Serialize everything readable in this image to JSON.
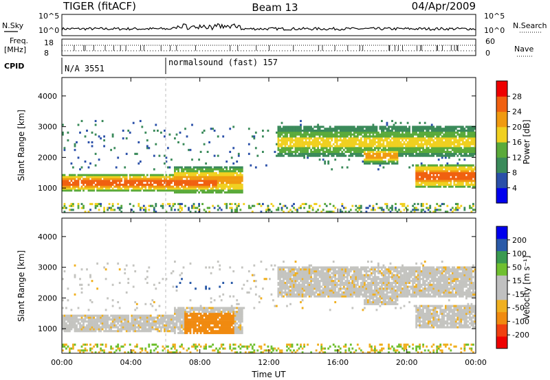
{
  "header": {
    "radar": "TIGER (fitACF)",
    "beam": "Beam 13",
    "date": "04/Apr/2009"
  },
  "top_panels": {
    "nsky_label": "N.Sky",
    "nsky_ticks": [
      "10^5",
      "10^0"
    ],
    "nsearch_label": "N.Search",
    "freq_label_1": "Freq.",
    "freq_label_2": "[MHz]",
    "freq_ticks": [
      "18",
      "8"
    ],
    "nave_label": "Nave",
    "nave_ticks": [
      "60",
      "0"
    ],
    "cpid_label": "CPID",
    "cpid_1": "N/A 3551",
    "cpid_2": "normalsound (fast) 157"
  },
  "colors": {
    "power_scale": [
      "#0000ee",
      "#2a4fa8",
      "#3a8a5a",
      "#5aaa3a",
      "#f0d020",
      "#f09a10",
      "#f06010",
      "#ee0000"
    ],
    "velocity_scale": [
      "#ee0000",
      "#f04010",
      "#f08a10",
      "#f0b020",
      "#c0c0c0",
      "#c0c0c0",
      "#70c030",
      "#3a9a50",
      "#2a5aa8",
      "#0000ee"
    ]
  },
  "chart_data": [
    {
      "type": "heatmap",
      "name_text": "power",
      "ylabel": "Slant Range [km]",
      "y_ticks": [
        "1000",
        "2000",
        "3000",
        "4000"
      ],
      "ylim": [
        200,
        4600
      ],
      "colorbar_label": "Power [dB]",
      "colorbar_ticks": [
        "4",
        "8",
        "12",
        "16",
        "20",
        "24",
        "28"
      ],
      "bands_hours": [
        {
          "t0": 0.0,
          "t1": 9.0,
          "r_low": 900,
          "r_high": 1450,
          "level": 28
        },
        {
          "t0": 6.5,
          "t1": 10.5,
          "r_low": 800,
          "r_high": 1700,
          "level": 24
        },
        {
          "t0": 12.5,
          "t1": 24.0,
          "r_low": 2000,
          "r_high": 3000,
          "level": 20
        },
        {
          "t0": 17.5,
          "t1": 19.5,
          "r_low": 1800,
          "r_high": 2300,
          "level": 24
        },
        {
          "t0": 20.5,
          "t1": 24.0,
          "r_low": 1000,
          "r_high": 1800,
          "level": 28
        }
      ]
    },
    {
      "type": "heatmap",
      "name_text": "velocity",
      "ylabel": "Slant Range [km]",
      "y_ticks": [
        "1000",
        "2000",
        "3000",
        "4000"
      ],
      "ylim": [
        200,
        4600
      ],
      "colorbar_label": "Velocity [m s⁻¹]",
      "colorbar_ticks": [
        "200",
        "100",
        "50",
        "15",
        "-15",
        "-50",
        "-100",
        "-200"
      ],
      "x_ticks": [
        "00:00",
        "04:00",
        "08:00",
        "12:00",
        "16:00",
        "20:00",
        "00:00"
      ],
      "xlabel": "Time UT"
    }
  ]
}
